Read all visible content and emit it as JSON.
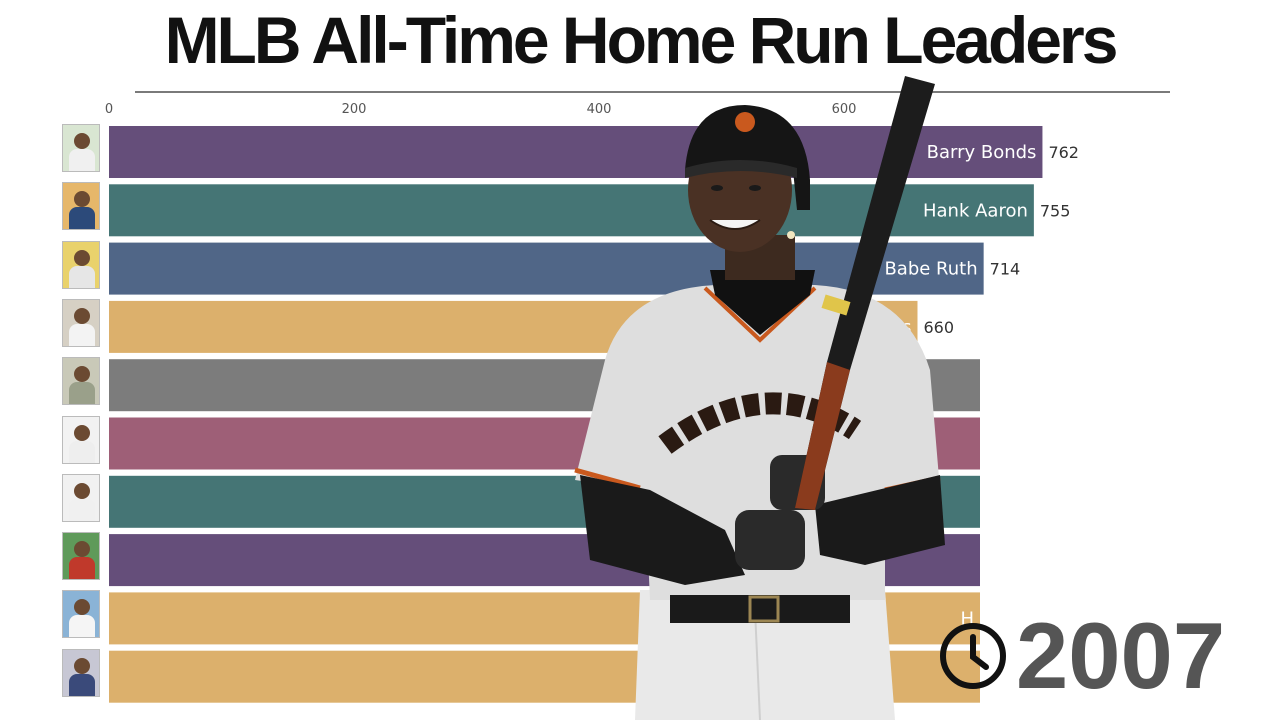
{
  "title": "MLB All-Time Home Run Leaders",
  "year": "2007",
  "icons": {
    "clock": "clock-icon",
    "player": "player-photo",
    "thumb": "player-card-thumbnail"
  },
  "chart_data": {
    "type": "bar",
    "orientation": "horizontal",
    "xlim": [
      0,
      800
    ],
    "x_ticks": [
      0,
      200,
      400,
      600
    ],
    "grid": false,
    "bars": [
      {
        "label": "Barry Bonds",
        "value": 762,
        "color": "#654e7a"
      },
      {
        "label": "Hank Aaron",
        "value": 755,
        "color": "#457575"
      },
      {
        "label": "Babe Ruth",
        "value": 714,
        "color": "#506687"
      },
      {
        "label": "ays",
        "value": 660,
        "color": "#dcb06c"
      },
      {
        "label": "",
        "value": null,
        "color": "#7c7c7c"
      },
      {
        "label": "",
        "value": null,
        "color": "#9e5f77"
      },
      {
        "label": "",
        "value": null,
        "color": "#457575"
      },
      {
        "label": "",
        "value": null,
        "color": "#654e7a"
      },
      {
        "label": "H",
        "value": null,
        "color": "#dcb06c"
      },
      {
        "label": "",
        "value": null,
        "color": "#dcb06c"
      }
    ]
  }
}
